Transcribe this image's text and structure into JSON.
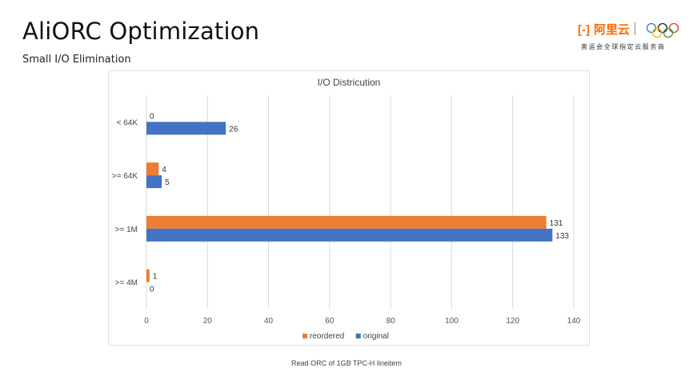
{
  "slide": {
    "title": "AliORC Optimization",
    "subtitle": "Small I/O Elimination",
    "footer": "Read ORC of 1GB TPC-H lineitem",
    "logo": {
      "brand": "阿里云",
      "tagline": "奥运会全球指定云服务商",
      "bracket": "(-)"
    }
  },
  "chart_data": {
    "type": "bar",
    "orientation": "horizontal",
    "title": "I/O Districution",
    "categories": [
      "< 64K",
      ">= 64K",
      ">= 1M",
      ">= 4M"
    ],
    "series": [
      {
        "name": "reordered",
        "color": "#ed7d31",
        "values": [
          0,
          4,
          131,
          1
        ]
      },
      {
        "name": "original",
        "color": "#4472c4",
        "values": [
          26,
          5,
          133,
          0
        ]
      }
    ],
    "xlim": [
      0,
      140
    ],
    "xticks": [
      0,
      20,
      40,
      60,
      80,
      100,
      120,
      140
    ],
    "grid": true,
    "legend": "bottom",
    "data_labels": true
  }
}
